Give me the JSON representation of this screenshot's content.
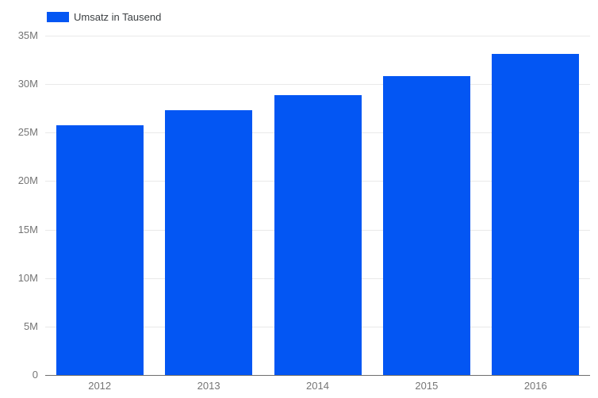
{
  "chart_data": {
    "type": "bar",
    "title": "",
    "categories": [
      "2012",
      "2013",
      "2014",
      "2015",
      "2016"
    ],
    "series": [
      {
        "name": "Umsatz in Tausend",
        "values": [
          25.8,
          27.3,
          28.9,
          30.8,
          33.1
        ],
        "color": "#0356f3"
      }
    ],
    "xlabel": "",
    "ylabel": "",
    "ylim": [
      0,
      35
    ],
    "yticks": [
      {
        "value": 0,
        "label": "0"
      },
      {
        "value": 5,
        "label": "5M"
      },
      {
        "value": 10,
        "label": "10M"
      },
      {
        "value": 15,
        "label": "15M"
      },
      {
        "value": 20,
        "label": "20M"
      },
      {
        "value": 25,
        "label": "25M"
      },
      {
        "value": 30,
        "label": "30M"
      },
      {
        "value": 35,
        "label": "35M"
      }
    ],
    "grid": true,
    "legend_position": "top-left"
  },
  "colors": {
    "bar": "#0356f3",
    "gridline": "#e9e9e9",
    "axis_line": "#6e6e6e",
    "tick_label": "#757575",
    "legend_text": "#3c4043",
    "background": "#ffffff"
  }
}
